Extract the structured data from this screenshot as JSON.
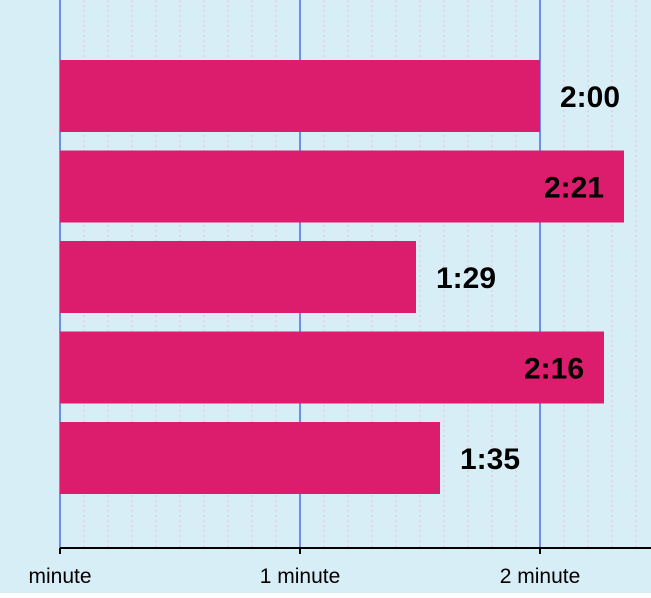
{
  "chart_data": {
    "type": "bar",
    "orientation": "horizontal",
    "values": [
      120,
      141,
      89,
      136,
      95
    ],
    "value_labels": [
      "2:00",
      "2:21",
      "1:29",
      "2:16",
      "1:35"
    ],
    "xlim": [
      0,
      150
    ],
    "x_ticks": [
      {
        "value": 0,
        "label": "minute"
      },
      {
        "value": 60,
        "label": "1 minute"
      },
      {
        "value": 120,
        "label": "2 minute"
      }
    ],
    "grid": true,
    "legend": "none"
  },
  "colors": {
    "background": "#d8eef7",
    "bar": "#dc1c6c",
    "major_grid": "#6b8fe3",
    "minor_grid": "#f2b9cf",
    "axis": "#000000",
    "label": "#000000"
  }
}
